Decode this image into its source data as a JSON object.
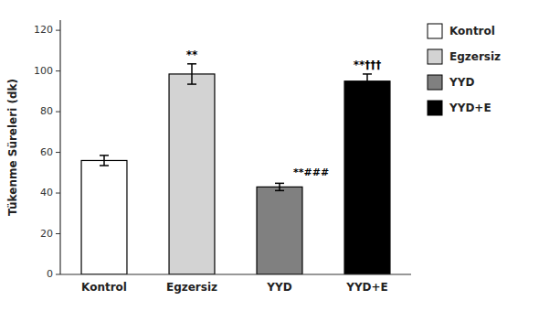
{
  "chart_data": {
    "type": "bar",
    "categories": [
      "Kontrol",
      "Egzersiz",
      "YYD",
      "YYD+E"
    ],
    "values": [
      56.0,
      98.5,
      43.0,
      95.0
    ],
    "errors": [
      2.5,
      5.0,
      1.8,
      3.5
    ],
    "colors": [
      "#ffffff",
      "#d3d3d3",
      "#808080",
      "#000000"
    ],
    "ylabel": "Tükenme Süreleri (dk)",
    "ylim": [
      0,
      125
    ],
    "yticks": [
      0,
      20,
      40,
      60,
      80,
      100,
      120
    ],
    "annotations": [
      {
        "category": "Egzersiz",
        "text": "**"
      },
      {
        "category": "YYD",
        "text": "**###"
      },
      {
        "category": "YYD+E",
        "text": "**†††"
      }
    ],
    "legend": "right",
    "grid": false
  }
}
